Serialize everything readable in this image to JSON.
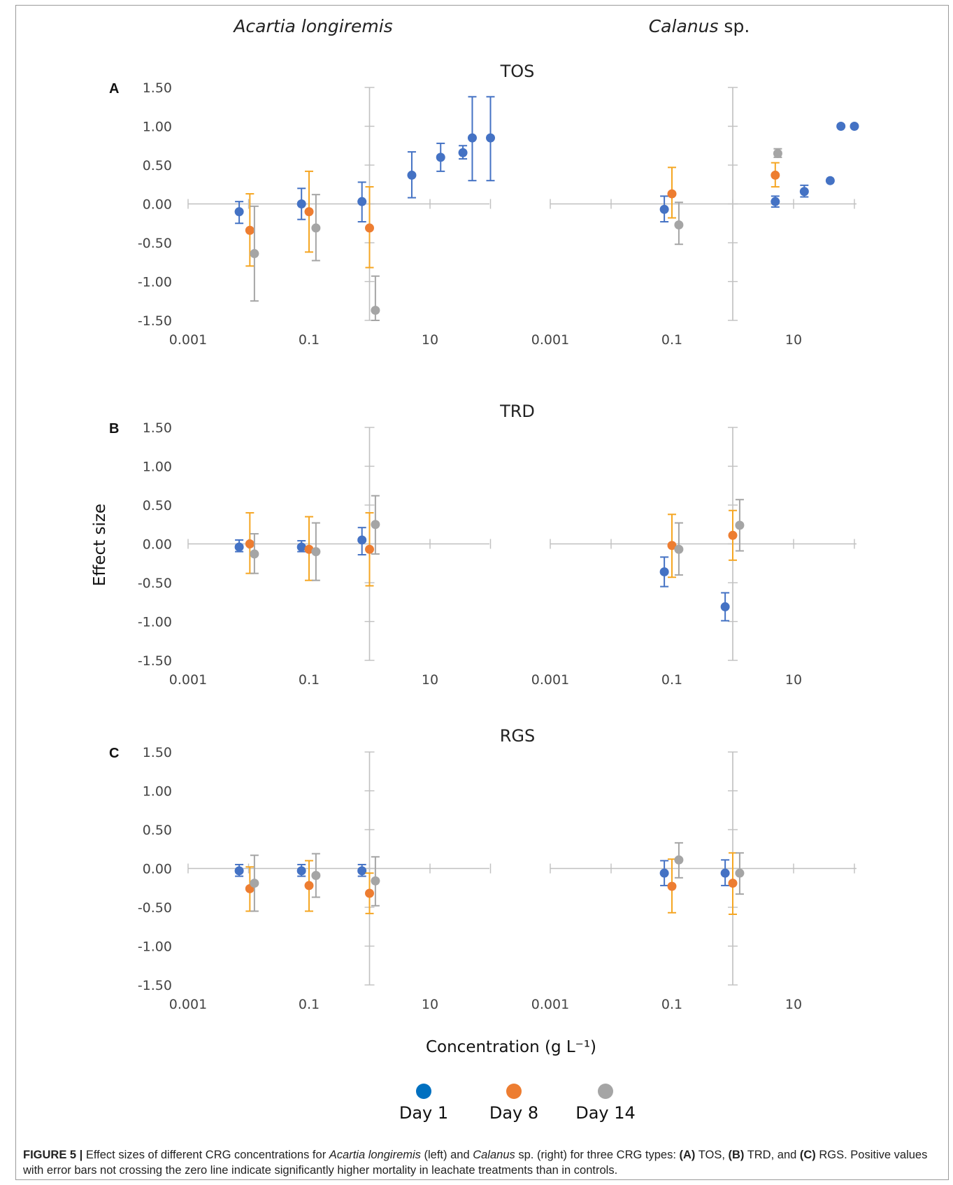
{
  "chart_data": {
    "type": "scatter",
    "species": [
      "Acartia longiremis",
      "Calanus sp."
    ],
    "species_note": "sp.",
    "xlabel": "Concentration (g L⁻¹)",
    "ylabel": "Effect size",
    "xscale": "log",
    "xlim": [
      0.001,
      100
    ],
    "ylim": [
      -1.5,
      1.5
    ],
    "y_ticks": [
      "1.50",
      "1.00",
      "0.50",
      "0.00",
      "-0.50",
      "-1.00",
      "-1.50"
    ],
    "x_ticks": [
      "0.001",
      "0.1",
      "10"
    ],
    "series_meta": [
      {
        "name": "Day 1",
        "color": "#4472C4",
        "legend_color": "#0070C0"
      },
      {
        "name": "Day 8",
        "color": "#ED7D31",
        "legend_color": "#ED7D31",
        "bar_color": "#F5A623"
      },
      {
        "name": "Day 14",
        "color": "#A5A5A5",
        "legend_color": "#A5A5A5"
      }
    ],
    "panels": [
      {
        "label": "A",
        "title": "TOS",
        "acartia": [
          {
            "series": "Day 1",
            "x": 0.007,
            "y": -0.1,
            "lo": -0.25,
            "hi": 0.03
          },
          {
            "series": "Day 8",
            "x": 0.0105,
            "y": -0.34,
            "lo": -0.8,
            "hi": 0.13
          },
          {
            "series": "Day 14",
            "x": 0.0125,
            "y": -0.64,
            "lo": -1.25,
            "hi": -0.03
          },
          {
            "series": "Day 1",
            "x": 0.075,
            "y": 0.0,
            "lo": -0.2,
            "hi": 0.2
          },
          {
            "series": "Day 8",
            "x": 0.1,
            "y": -0.1,
            "lo": -0.62,
            "hi": 0.42
          },
          {
            "series": "Day 14",
            "x": 0.13,
            "y": -0.31,
            "lo": -0.73,
            "hi": 0.12
          },
          {
            "series": "Day 1",
            "x": 0.75,
            "y": 0.03,
            "lo": -0.23,
            "hi": 0.28
          },
          {
            "series": "Day 8",
            "x": 1.0,
            "y": -0.31,
            "lo": -0.82,
            "hi": 0.22
          },
          {
            "series": "Day 14",
            "x": 1.25,
            "y": -1.37,
            "lo": -1.5,
            "hi": -0.93
          },
          {
            "series": "Day 1",
            "x": 5.0,
            "y": 0.37,
            "lo": 0.08,
            "hi": 0.67
          },
          {
            "series": "Day 1",
            "x": 15.0,
            "y": 0.6,
            "lo": 0.42,
            "hi": 0.78
          },
          {
            "series": "Day 1",
            "x": 35.0,
            "y": 0.66,
            "lo": 0.58,
            "hi": 0.75
          },
          {
            "series": "Day 1",
            "x": 50.0,
            "y": 0.85,
            "lo": 0.3,
            "hi": 1.38
          },
          {
            "series": "Day 1",
            "x": 100.0,
            "y": 0.85,
            "lo": 0.3,
            "hi": 1.38
          }
        ],
        "calanus": [
          {
            "series": "Day 1",
            "x": 0.075,
            "y": -0.07,
            "lo": -0.23,
            "hi": 0.1
          },
          {
            "series": "Day 8",
            "x": 0.1,
            "y": 0.13,
            "lo": -0.18,
            "hi": 0.47
          },
          {
            "series": "Day 14",
            "x": 0.13,
            "y": -0.27,
            "lo": -0.52,
            "hi": 0.02
          },
          {
            "series": "Day 1",
            "x": 5.0,
            "y": 0.03,
            "lo": -0.04,
            "hi": 0.1
          },
          {
            "series": "Day 8",
            "x": 5.0,
            "y": 0.37,
            "lo": 0.22,
            "hi": 0.53
          },
          {
            "series": "Day 14",
            "x": 5.5,
            "y": 0.65,
            "lo": 0.6,
            "hi": 0.71
          },
          {
            "series": "Day 1",
            "x": 15.0,
            "y": 0.16,
            "lo": 0.09,
            "hi": 0.24
          },
          {
            "series": "Day 1",
            "x": 40.0,
            "y": 0.3,
            "lo": 0.3,
            "hi": 0.3
          },
          {
            "series": "Day 1",
            "x": 60.0,
            "y": 1.0,
            "lo": 1.0,
            "hi": 1.0
          },
          {
            "series": "Day 1",
            "x": 100.0,
            "y": 1.0,
            "lo": 1.0,
            "hi": 1.0
          }
        ]
      },
      {
        "label": "B",
        "title": "TRD",
        "acartia": [
          {
            "series": "Day 1",
            "x": 0.007,
            "y": -0.04,
            "lo": -0.1,
            "hi": 0.05
          },
          {
            "series": "Day 8",
            "x": 0.0105,
            "y": 0.0,
            "lo": -0.38,
            "hi": 0.4
          },
          {
            "series": "Day 14",
            "x": 0.0125,
            "y": -0.13,
            "lo": -0.38,
            "hi": 0.13
          },
          {
            "series": "Day 1",
            "x": 0.075,
            "y": -0.04,
            "lo": -0.1,
            "hi": 0.04
          },
          {
            "series": "Day 8",
            "x": 0.1,
            "y": -0.07,
            "lo": -0.47,
            "hi": 0.35
          },
          {
            "series": "Day 14",
            "x": 0.13,
            "y": -0.1,
            "lo": -0.47,
            "hi": 0.27
          },
          {
            "series": "Day 1",
            "x": 0.75,
            "y": 0.05,
            "lo": -0.14,
            "hi": 0.21
          },
          {
            "series": "Day 8",
            "x": 1.0,
            "y": -0.07,
            "lo": -0.54,
            "hi": 0.4
          },
          {
            "series": "Day 14",
            "x": 1.25,
            "y": 0.25,
            "lo": -0.13,
            "hi": 0.62
          }
        ],
        "calanus": [
          {
            "series": "Day 1",
            "x": 0.075,
            "y": -0.36,
            "lo": -0.55,
            "hi": -0.17
          },
          {
            "series": "Day 8",
            "x": 0.1,
            "y": -0.02,
            "lo": -0.43,
            "hi": 0.38
          },
          {
            "series": "Day 14",
            "x": 0.13,
            "y": -0.07,
            "lo": -0.4,
            "hi": 0.27
          },
          {
            "series": "Day 1",
            "x": 0.75,
            "y": -0.81,
            "lo": -0.99,
            "hi": -0.63
          },
          {
            "series": "Day 8",
            "x": 1.0,
            "y": 0.11,
            "lo": -0.21,
            "hi": 0.43
          },
          {
            "series": "Day 14",
            "x": 1.3,
            "y": 0.24,
            "lo": -0.09,
            "hi": 0.57
          }
        ]
      },
      {
        "label": "C",
        "title": "RGS",
        "acartia": [
          {
            "series": "Day 1",
            "x": 0.007,
            "y": -0.03,
            "lo": -0.1,
            "hi": 0.05
          },
          {
            "series": "Day 8",
            "x": 0.0105,
            "y": -0.26,
            "lo": -0.55,
            "hi": 0.02
          },
          {
            "series": "Day 14",
            "x": 0.0125,
            "y": -0.19,
            "lo": -0.55,
            "hi": 0.17
          },
          {
            "series": "Day 1",
            "x": 0.075,
            "y": -0.03,
            "lo": -0.1,
            "hi": 0.05
          },
          {
            "series": "Day 8",
            "x": 0.1,
            "y": -0.22,
            "lo": -0.55,
            "hi": 0.1
          },
          {
            "series": "Day 14",
            "x": 0.13,
            "y": -0.09,
            "lo": -0.37,
            "hi": 0.19
          },
          {
            "series": "Day 1",
            "x": 0.75,
            "y": -0.03,
            "lo": -0.1,
            "hi": 0.05
          },
          {
            "series": "Day 8",
            "x": 1.0,
            "y": -0.32,
            "lo": -0.58,
            "hi": -0.06
          },
          {
            "series": "Day 14",
            "x": 1.25,
            "y": -0.16,
            "lo": -0.48,
            "hi": 0.15
          }
        ],
        "calanus": [
          {
            "series": "Day 1",
            "x": 0.075,
            "y": -0.06,
            "lo": -0.22,
            "hi": 0.1
          },
          {
            "series": "Day 8",
            "x": 0.1,
            "y": -0.23,
            "lo": -0.57,
            "hi": 0.12
          },
          {
            "series": "Day 14",
            "x": 0.13,
            "y": 0.11,
            "lo": -0.12,
            "hi": 0.33
          },
          {
            "series": "Day 1",
            "x": 0.75,
            "y": -0.06,
            "lo": -0.22,
            "hi": 0.11
          },
          {
            "series": "Day 8",
            "x": 1.0,
            "y": -0.19,
            "lo": -0.59,
            "hi": 0.2
          },
          {
            "series": "Day 14",
            "x": 1.3,
            "y": -0.06,
            "lo": -0.33,
            "hi": 0.2
          }
        ]
      }
    ]
  },
  "caption": {
    "label": "FIGURE 5 |",
    "t1": " Effect sizes of different CRG concentrations for ",
    "sp1": "Acartia longiremis",
    "t2": " (left) and ",
    "sp2": "Calanus",
    "t3": " sp. (right) for three CRG types: ",
    "a": "(A)",
    "t4": " TOS, ",
    "b": "(B)",
    "t5": " TRD, and ",
    "c": "(C)",
    "t6": " RGS. Positive values with error bars not crossing the zero line indicate significantly higher mortality in leachate treatments than in controls."
  }
}
